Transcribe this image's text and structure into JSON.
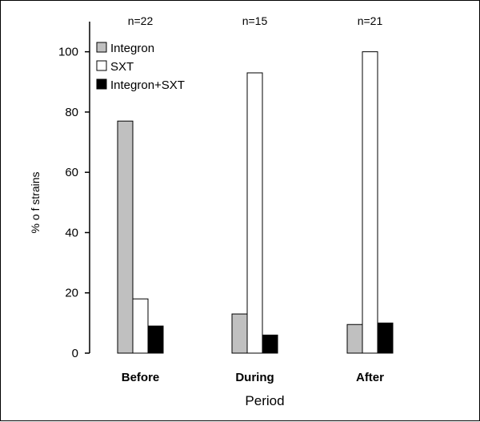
{
  "chart_data": {
    "type": "bar",
    "categories": [
      "Before",
      "During",
      "After"
    ],
    "category_notes": [
      "n=22",
      "n=15",
      "n=21"
    ],
    "series": [
      {
        "name": "Integron",
        "values": [
          77,
          13,
          9.5
        ],
        "color": "#c0c0c0"
      },
      {
        "name": "SXT",
        "values": [
          18,
          93,
          100
        ],
        "color": "#ffffff"
      },
      {
        "name": "Integron+SXT",
        "values": [
          9,
          6,
          10
        ],
        "color": "#000000"
      }
    ],
    "title": "",
    "xlabel": "Period",
    "ylabel": "% o f strains",
    "ylim": [
      0,
      110
    ],
    "yticks": [
      0,
      20,
      40,
      60,
      80,
      100
    ],
    "grid": false,
    "legend_position": "top-left"
  }
}
